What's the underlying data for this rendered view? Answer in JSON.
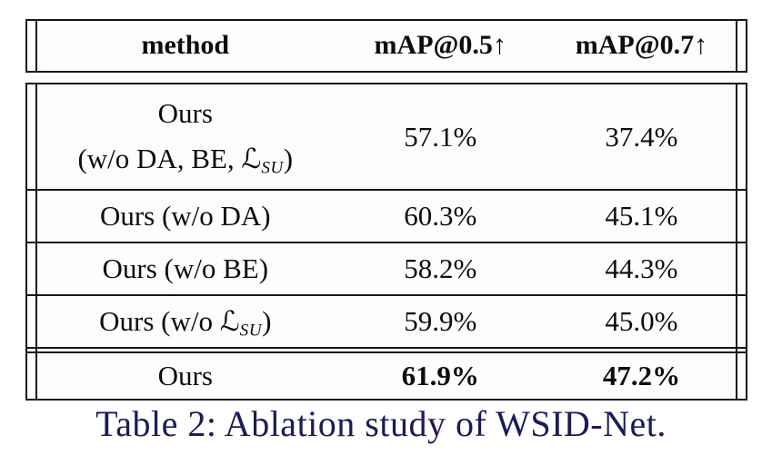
{
  "table": {
    "header": {
      "method": "method",
      "map05": "mAP@0.5↑",
      "map07": "mAP@0.7↑"
    },
    "rows": [
      {
        "line1": "Ours",
        "line2_prefix": "(w/o DA, BE, ",
        "math_symbol": "ℒ",
        "math_subscript": "SU",
        "line2_suffix": ")",
        "map05": "57.1%",
        "map07": "37.4%"
      },
      {
        "method": "Ours (w/o DA)",
        "map05": "60.3%",
        "map07": "45.1%"
      },
      {
        "method": "Ours (w/o BE)",
        "map05": "58.2%",
        "map07": "44.3%"
      },
      {
        "method_prefix": "Ours (w/o ",
        "math_symbol": "ℒ",
        "math_subscript": "SU",
        "method_suffix": ")",
        "map05": "59.9%",
        "map07": "45.0%"
      },
      {
        "method": "Ours",
        "map05": "61.9%",
        "map07": "47.2%"
      }
    ]
  },
  "caption": {
    "text": "Table 2: Ablation study of WSID-Net."
  },
  "colors": {
    "background": "#ffffff",
    "table_background": "#fdfdfd",
    "border": "#161616",
    "table_text": "#0d0d0d",
    "caption_text": "#1a1a5e"
  }
}
